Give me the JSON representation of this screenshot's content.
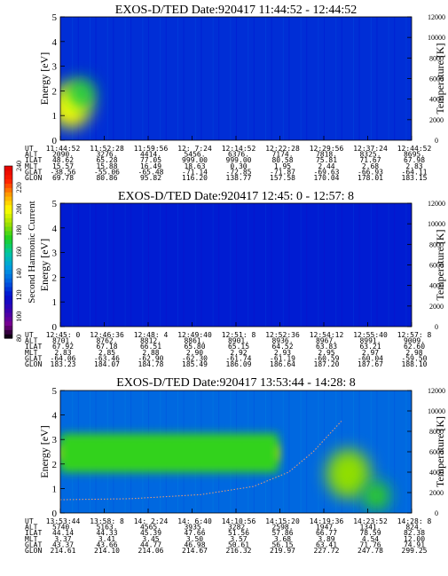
{
  "figure": {
    "colorbar": {
      "title": "Second Harmonic Current",
      "ticks": [
        80,
        100,
        120,
        140,
        160,
        180,
        200,
        220,
        240
      ],
      "colors": [
        "#000000",
        "#7a0090",
        "#3a00b0",
        "#0010d0",
        "#0060e0",
        "#00a0e0",
        "#00c8a0",
        "#20d020",
        "#a0e000",
        "#ffff00",
        "#ffa000",
        "#ff2000",
        "#e00000"
      ]
    },
    "panels": [
      {
        "title": "EXOS-D/TED   Date:920417  11:44:52 - 12:44:52",
        "ylabel": "Energy [eV]",
        "y2label": "Temperature [K]",
        "yticks": [
          0,
          1,
          2,
          3,
          4,
          5
        ],
        "y2ticks": [
          0,
          2000,
          4000,
          6000,
          8000,
          10000,
          12000
        ],
        "rows": [
          {
            "label": "UT",
            "values": [
              "11:44:52",
              "11:52:28",
              "11:59:56",
              "12: 7:24",
              "12:14:52",
              "12:22:28",
              "12:29:56",
              "12:37:24",
              "12:44:52"
            ]
          },
          {
            "label": "ALT",
            "values": [
              "2090.",
              "3276.",
              "4414.",
              "5456.",
              "6376.",
              "7174.",
              "7818.",
              "8325.",
              "8695."
            ]
          },
          {
            "label": "ILAT",
            "values": [
              "48.62",
              "65.28",
              "77.05",
              "999.00",
              "999.00",
              "80.58",
              "75.81",
              "71.67",
              "67.98"
            ]
          },
          {
            "label": "MLT",
            "values": [
              "15.57",
              "15.88",
              "16.49",
              "18.63",
              "0.30",
              "1.95",
              "2.44",
              "2.68",
              "2.83"
            ]
          },
          {
            "label": "GLAT",
            "values": [
              "-38.56",
              "-55.06",
              "-65.48",
              "-71.14",
              "-72.85",
              "-71.87",
              "-69.63",
              "-66.93",
              "-64.11"
            ]
          },
          {
            "label": "GLON",
            "values": [
              "69.78",
              "80.86",
              "95.82",
              "116.20",
              "138.77",
              "157.58",
              "170.04",
              "178.01",
              "183.15"
            ]
          }
        ]
      },
      {
        "title": "EXOS-D/TED   Date:920417  12:45: 0 - 12:57: 8",
        "ylabel": "Energy [eV]",
        "y2label": "Temperature [K]",
        "yticks": [
          0,
          1,
          2,
          3,
          4,
          5
        ],
        "y2ticks": [
          0,
          2000,
          4000,
          6000,
          8000,
          10000,
          12000
        ],
        "rows": [
          {
            "label": "UT",
            "values": [
              "12:45: 0",
              "12:46:36",
              "12:48: 4",
              "12:49:40",
              "12:51: 8",
              "12:52:36",
              "12:54:12",
              "12:55:40",
              "12:57: 8"
            ]
          },
          {
            "label": "ALT",
            "values": [
              "8701.",
              "8762.",
              "8812.",
              "8861.",
              "8901.",
              "8936.",
              "8967.",
              "8991.",
              "9009."
            ]
          },
          {
            "label": "ILAT",
            "values": [
              "67.92",
              "67.18",
              "66.51",
              "65.80",
              "65.15",
              "64.52",
              "63.83",
              "63.21",
              "62.60"
            ]
          },
          {
            "label": "MLT",
            "values": [
              "2.83",
              "2.85",
              "2.88",
              "2.90",
              "2.92",
              "2.93",
              "2.95",
              "2.97",
              "2.98"
            ]
          },
          {
            "label": "GLAT",
            "values": [
              "-64.06",
              "-63.46",
              "-62.90",
              "-62.30",
              "-61.74",
              "-61.19",
              "-60.59",
              "-60.04",
              "-59.50"
            ]
          },
          {
            "label": "GLON",
            "values": [
              "183.23",
              "184.07",
              "184.78",
              "185.49",
              "186.09",
              "186.64",
              "187.20",
              "187.67",
              "188.10"
            ]
          }
        ]
      },
      {
        "title": "EXOS-D/TED   Date:920417  13:53:44 - 14:28: 8",
        "ylabel": "Energy [eV]",
        "y2label": "Temperature [K]",
        "yticks": [
          0,
          1,
          2,
          3,
          4,
          5
        ],
        "y2ticks": [
          0,
          2000,
          4000,
          6000,
          8000,
          10000,
          12000
        ],
        "rows": [
          {
            "label": "UT",
            "values": [
              "13:53:44",
              "13:58: 8",
              "14: 2:24",
              "14: 6:40",
              "14:10:56",
              "14:15:20",
              "14:19:36",
              "14:23:52",
              "14:28: 8"
            ]
          },
          {
            "label": "ALT",
            "values": [
              "5740.",
              "5163.",
              "4565.",
              "3935.",
              "3282.",
              "2598.",
              "1947.",
              "1341.",
              "824."
            ]
          },
          {
            "label": "ILAT",
            "values": [
              "44.14",
              "44.33",
              "45.39",
              "47.66",
              "51.56",
              "57.86",
              "66.77",
              "78.59",
              "82.38"
            ]
          },
          {
            "label": "MLT",
            "values": [
              "3.37",
              "3.41",
              "3.45",
              "3.50",
              "3.57",
              "3.68",
              "3.89",
              "4.54",
              "12.00"
            ]
          },
          {
            "label": "GLAT",
            "values": [
              "43.37",
              "43.66",
              "44.77",
              "46.98",
              "50.61",
              "56.15",
              "63.41",
              "71.76",
              "74.91"
            ]
          },
          {
            "label": "GLON",
            "values": [
              "214.61",
              "214.10",
              "214.06",
              "214.67",
              "216.32",
              "219.97",
              "227.72",
              "247.78",
              "299.25"
            ]
          }
        ]
      }
    ]
  },
  "chart_data": [
    {
      "type": "heatmap",
      "title": "EXOS-D/TED   Date:920417  11:44:52 - 12:44:52",
      "xlabel": "UT",
      "ylabel": "Energy [eV]",
      "y2label": "Temperature [K]",
      "ylim": [
        0,
        5
      ],
      "y2lim": [
        0,
        12000
      ],
      "color_scale": {
        "label": "Second Harmonic Current",
        "range": [
          80,
          240
        ]
      },
      "x_ticks": [
        "11:44:52",
        "11:52:28",
        "11:59:56",
        "12: 7:24",
        "12:14:52",
        "12:22:28",
        "12:29:56",
        "12:37:24",
        "12:44:52"
      ],
      "background_level": 125,
      "features": [
        {
          "kind": "blob",
          "x_fraction": 0.03,
          "energy_eV": 1.4,
          "energy_halfwidth": 0.9,
          "level": 200
        },
        {
          "kind": "blob",
          "x_fraction": 0.06,
          "energy_eV": 1.9,
          "energy_halfwidth": 0.6,
          "level": 170
        }
      ]
    },
    {
      "type": "heatmap",
      "title": "EXOS-D/TED   Date:920417  12:45: 0 - 12:57: 8",
      "xlabel": "UT",
      "ylabel": "Energy [eV]",
      "y2label": "Temperature [K]",
      "ylim": [
        0,
        5
      ],
      "y2lim": [
        0,
        12000
      ],
      "color_scale": {
        "label": "Second Harmonic Current",
        "range": [
          80,
          240
        ]
      },
      "x_ticks": [
        "12:45: 0",
        "12:46:36",
        "12:48: 4",
        "12:49:40",
        "12:51: 8",
        "12:52:36",
        "12:54:12",
        "12:55:40",
        "12:57: 8"
      ],
      "background_level": 122,
      "features": []
    },
    {
      "type": "heatmap",
      "title": "EXOS-D/TED   Date:920417  13:53:44 - 14:28: 8",
      "xlabel": "UT",
      "ylabel": "Energy [eV]",
      "y2label": "Temperature [K]",
      "ylim": [
        0,
        5
      ],
      "y2lim": [
        0,
        12000
      ],
      "color_scale": {
        "label": "Second Harmonic Current",
        "range": [
          80,
          240
        ]
      },
      "x_ticks": [
        "13:53:44",
        "13:58: 8",
        "14: 2:24",
        "14: 6:40",
        "14:10:56",
        "14:15:20",
        "14:19:36",
        "14:23:52",
        "14:28: 8"
      ],
      "background_level": 135,
      "features": [
        {
          "kind": "band",
          "x_from": 0.0,
          "x_to": 0.62,
          "energy_eV": 2.45,
          "energy_halfwidth": 0.35,
          "level": 205
        },
        {
          "kind": "band",
          "x_from": 0.0,
          "x_to": 0.62,
          "energy_eV": 2.45,
          "energy_halfwidth": 0.8,
          "level": 175
        },
        {
          "kind": "blob",
          "x_fraction": 0.82,
          "energy_eV": 1.6,
          "energy_halfwidth": 1.0,
          "level": 185
        },
        {
          "kind": "blob",
          "x_fraction": 0.9,
          "energy_eV": 0.7,
          "energy_halfwidth": 0.6,
          "level": 175
        }
      ],
      "temperature_trace_K": [
        [
          0.0,
          1300
        ],
        [
          0.2,
          1400
        ],
        [
          0.4,
          1800
        ],
        [
          0.55,
          2600
        ],
        [
          0.65,
          4000
        ],
        [
          0.72,
          6000
        ],
        [
          0.8,
          9000
        ]
      ]
    }
  ]
}
